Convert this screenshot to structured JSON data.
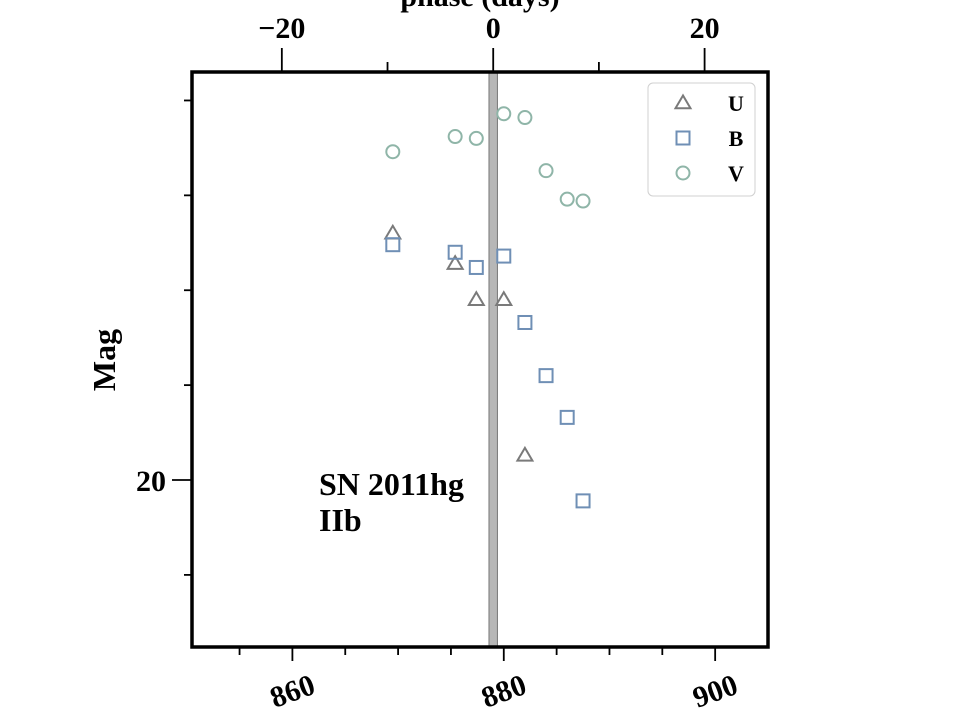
{
  "chart_data": {
    "type": "scatter",
    "title": "",
    "xlabel": "",
    "ylabel": "Mag",
    "top_xlabel": "phase (days)",
    "annotation": [
      "SN 2011hg",
      "IIb"
    ],
    "x_bottom": {
      "ticks": [
        "860",
        "880",
        "900"
      ],
      "tick_values": [
        860,
        880,
        900
      ],
      "lim": [
        850.5,
        905.0
      ]
    },
    "x_top": {
      "ticks": [
        "−20",
        "0",
        "20"
      ],
      "tick_values": [
        -20,
        0,
        20
      ],
      "zero_at": 879.0
    },
    "y": {
      "ticks": [
        "20"
      ],
      "tick_values": [
        20
      ],
      "lim": [
        17.85,
        20.88
      ],
      "inverted": true
    },
    "shaded_band": {
      "x_center": 879.0,
      "half_width": 0.4,
      "color": "#999999"
    },
    "legend": {
      "placement": "upper right",
      "entries": [
        "U",
        "B",
        "V"
      ]
    },
    "colors": {
      "U": "#7a7a7a",
      "B": "#6f8fb5",
      "V": "#8fb5a8"
    },
    "series": [
      {
        "name": "U",
        "marker": "triangle",
        "x": [
          869.5,
          875.4,
          877.4,
          880.0,
          882.0
        ],
        "y": [
          18.7,
          18.86,
          19.05,
          19.05,
          19.87
        ]
      },
      {
        "name": "B",
        "marker": "square",
        "x": [
          869.5,
          875.4,
          877.4,
          880.0,
          882.0,
          884.0,
          886.0,
          887.5
        ],
        "y": [
          18.76,
          18.8,
          18.88,
          18.82,
          19.17,
          19.45,
          19.67,
          20.11
        ]
      },
      {
        "name": "V",
        "marker": "circle",
        "x": [
          869.5,
          875.4,
          877.4,
          880.0,
          882.0,
          884.0,
          886.0,
          887.5
        ],
        "y": [
          18.27,
          18.19,
          18.2,
          18.07,
          18.09,
          18.37,
          18.52,
          18.53
        ]
      }
    ]
  }
}
